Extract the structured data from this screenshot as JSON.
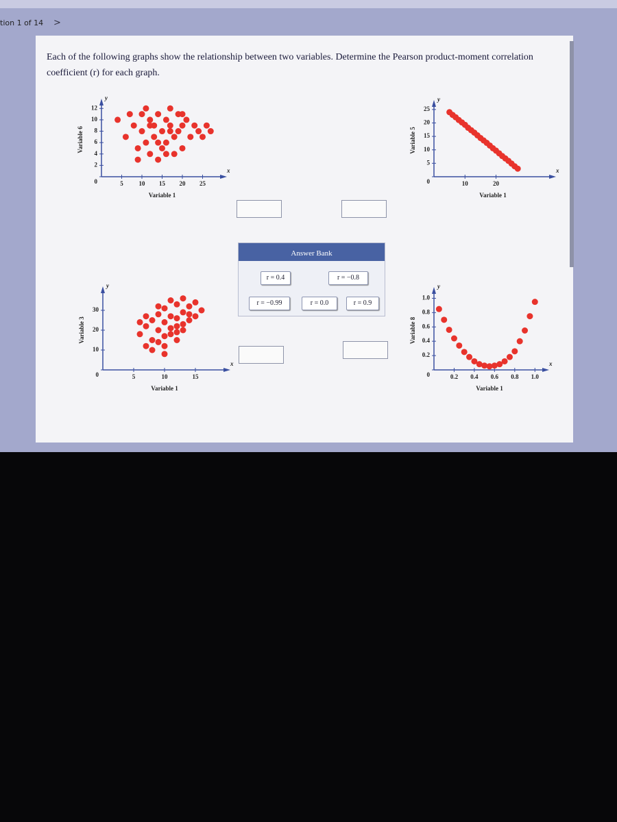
{
  "header": {
    "question_counter": "tion 1 of 14",
    "next": ">"
  },
  "prompt": "Each of the following graphs show the relationship between two variables. Determine the Pearson product-moment correlation coefficient (r) for each graph.",
  "answer_bank": {
    "title": "Answer Bank",
    "options": [
      "r = 0.4",
      "r = −0.8",
      "r = −0.99",
      "r = 0.0",
      "r = 0.9"
    ]
  },
  "chart_data": [
    {
      "type": "scatter",
      "x_label": "Variable 1",
      "y_label": "Variable 6",
      "x_axis_name": "x",
      "y_axis_name": "y",
      "color": "#e8332c",
      "xlim": [
        0,
        30
      ],
      "ylim": [
        0,
        13
      ],
      "xticks": [
        5,
        10,
        15,
        20,
        25
      ],
      "yticks": [
        0,
        2,
        4,
        6,
        8,
        10,
        12
      ],
      "x": [
        4,
        6,
        7,
        8,
        9,
        10,
        10,
        11,
        12,
        12,
        13,
        13,
        14,
        14,
        15,
        15,
        16,
        16,
        17,
        17,
        18,
        18,
        19,
        19,
        20,
        20,
        21,
        22,
        23,
        24,
        25,
        26,
        9,
        11,
        14,
        17,
        20,
        12,
        16,
        27
      ],
      "values": [
        10,
        7,
        11,
        9,
        5,
        8,
        11,
        6,
        10,
        4,
        9,
        7,
        3,
        11,
        8,
        5,
        10,
        6,
        9,
        12,
        7,
        4,
        11,
        8,
        9,
        5,
        10,
        7,
        9,
        8,
        7,
        9,
        3,
        12,
        6,
        8,
        11,
        9,
        4,
        8
      ]
    },
    {
      "type": "scatter",
      "x_label": "Variable 1",
      "y_label": "Variable 5",
      "x_axis_name": "x",
      "y_axis_name": "y",
      "color": "#e8332c",
      "xlim": [
        0,
        38
      ],
      "ylim": [
        0,
        27
      ],
      "xticks": [
        10,
        20
      ],
      "yticks": [
        0,
        5,
        10,
        15,
        20,
        25
      ],
      "x": [
        5,
        6,
        7,
        8,
        9,
        10,
        11,
        12,
        13,
        14,
        15,
        16,
        17,
        18,
        19,
        20,
        21,
        22,
        23,
        24,
        25,
        26,
        27
      ],
      "values": [
        24,
        23,
        22.1,
        21.1,
        20.2,
        19.3,
        18.2,
        17.3,
        16.4,
        15.4,
        14.4,
        13.5,
        12.6,
        11.6,
        10.6,
        9.7,
        8.7,
        7.7,
        6.8,
        5.9,
        4.9,
        3.9,
        3
      ]
    },
    {
      "type": "scatter",
      "x_label": "Variable 1",
      "y_label": "Variable 3",
      "x_axis_name": "x",
      "y_axis_name": "y",
      "color": "#e8332c",
      "xlim": [
        0,
        20
      ],
      "ylim": [
        0,
        40
      ],
      "xticks": [
        5,
        10,
        15
      ],
      "yticks": [
        0,
        10,
        20,
        30
      ],
      "x": [
        6,
        7,
        7,
        8,
        8,
        9,
        9,
        10,
        10,
        10,
        11,
        11,
        11,
        12,
        12,
        12,
        13,
        13,
        13,
        14,
        14,
        15,
        15,
        16,
        8,
        9,
        10,
        11,
        12,
        13,
        6,
        7,
        10,
        12,
        14,
        9
      ],
      "values": [
        18,
        12,
        22,
        15,
        25,
        20,
        28,
        17,
        24,
        31,
        21,
        27,
        35,
        19,
        26,
        33,
        23,
        29,
        36,
        25,
        32,
        27,
        34,
        30,
        10,
        14,
        12,
        18,
        22,
        20,
        24,
        27,
        8,
        15,
        28,
        32
      ]
    },
    {
      "type": "scatter",
      "x_label": "Variable 1",
      "y_label": "Variable 8",
      "x_axis_name": "x",
      "y_axis_name": "y",
      "color": "#e8332c",
      "xlim": [
        0,
        1.1
      ],
      "ylim": [
        0,
        1.1
      ],
      "xticks": [
        0.2,
        0.4,
        0.6,
        {
          "value": 0.8,
          "label": "0.8"
        },
        {
          "value": 1,
          "label": "1.0"
        }
      ],
      "yticks": [
        0,
        0.2,
        0.4,
        0.6,
        0.8,
        {
          "value": 1,
          "label": "1.0"
        }
      ],
      "x": [
        0.05,
        0.1,
        0.15,
        0.2,
        0.25,
        0.3,
        0.35,
        0.4,
        0.45,
        0.5,
        0.55,
        0.6,
        0.65,
        0.7,
        0.75,
        0.8,
        0.85,
        0.9,
        0.95,
        1.0
      ],
      "values": [
        0.85,
        0.7,
        0.56,
        0.44,
        0.34,
        0.25,
        0.18,
        0.12,
        0.08,
        0.06,
        0.05,
        0.06,
        0.08,
        0.12,
        0.18,
        0.26,
        0.4,
        0.55,
        0.75,
        0.95
      ]
    }
  ]
}
